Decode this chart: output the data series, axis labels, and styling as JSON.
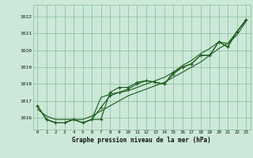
{
  "title": "Graphe pression niveau de la mer (hPa)",
  "background_color": "#cce8d8",
  "grid_color": "#88bb99",
  "line_color": "#1a5c1a",
  "x_labels": [
    "0",
    "1",
    "2",
    "3",
    "4",
    "5",
    "6",
    "7",
    "8",
    "9",
    "10",
    "11",
    "12",
    "13",
    "14",
    "15",
    "16",
    "17",
    "18",
    "19",
    "20",
    "21",
    "22",
    "23"
  ],
  "ylim": [
    1015.3,
    1022.7
  ],
  "yticks": [
    1016,
    1017,
    1018,
    1019,
    1020,
    1021,
    1022
  ],
  "series": {
    "marked1": [
      1016.7,
      1015.9,
      1015.7,
      1015.7,
      1015.9,
      1015.7,
      1015.9,
      1015.9,
      1017.5,
      1017.8,
      1017.8,
      1018.1,
      1018.2,
      1018.1,
      1018.0,
      1018.7,
      1019.0,
      1019.2,
      1019.7,
      1019.7,
      1020.5,
      1020.2,
      1021.1,
      1021.8
    ],
    "marked2": [
      1016.7,
      1015.9,
      1015.7,
      1015.7,
      1015.9,
      1015.7,
      1015.9,
      1016.6,
      1017.3,
      1017.5,
      1017.7,
      1018.0,
      1018.2,
      1018.1,
      1018.0,
      1018.6,
      1019.0,
      1019.2,
      1019.7,
      1019.7,
      1020.5,
      1020.2,
      1021.1,
      1021.8
    ],
    "trend1": [
      1016.7,
      1015.9,
      1015.7,
      1015.7,
      1015.9,
      1015.7,
      1015.9,
      1017.2,
      1017.4,
      1017.5,
      1017.6,
      1017.8,
      1018.0,
      1018.2,
      1018.4,
      1018.7,
      1019.1,
      1019.4,
      1019.8,
      1020.1,
      1020.5,
      1020.4,
      1021.1,
      1021.8
    ],
    "trend2": [
      1016.5,
      1016.1,
      1015.9,
      1015.9,
      1015.9,
      1015.9,
      1016.1,
      1016.4,
      1016.7,
      1017.0,
      1017.3,
      1017.5,
      1017.7,
      1017.9,
      1018.1,
      1018.4,
      1018.7,
      1019.0,
      1019.3,
      1019.7,
      1020.1,
      1020.4,
      1020.9,
      1021.7
    ]
  }
}
